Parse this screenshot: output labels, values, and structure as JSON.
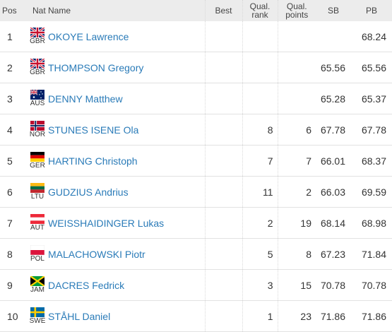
{
  "headers": {
    "pos": "Pos",
    "nat": "Nat",
    "name": "Name",
    "best": "Best",
    "qual_rank_1": "Qual.",
    "qual_rank_2": "rank",
    "qual_points_1": "Qual.",
    "qual_points_2": "points",
    "sb": "SB",
    "pb": "PB"
  },
  "rows": [
    {
      "pos": "1",
      "nat": "GBR",
      "flag": "gbr",
      "name": "OKOYE Lawrence",
      "best": "",
      "qual_rank": "",
      "qual_points": "",
      "sb": "",
      "pb": "68.24"
    },
    {
      "pos": "2",
      "nat": "GBR",
      "flag": "gbr",
      "name": "THOMPSON Gregory",
      "best": "",
      "qual_rank": "",
      "qual_points": "",
      "sb": "65.56",
      "pb": "65.56"
    },
    {
      "pos": "3",
      "nat": "AUS",
      "flag": "aus",
      "name": "DENNY Matthew",
      "best": "",
      "qual_rank": "",
      "qual_points": "",
      "sb": "65.28",
      "pb": "65.37"
    },
    {
      "pos": "4",
      "nat": "NOR",
      "flag": "nor",
      "name": "STUNES ISENE Ola",
      "best": "",
      "qual_rank": "8",
      "qual_points": "6",
      "sb": "67.78",
      "pb": "67.78"
    },
    {
      "pos": "5",
      "nat": "GER",
      "flag": "ger",
      "name": "HARTING Christoph",
      "best": "",
      "qual_rank": "7",
      "qual_points": "7",
      "sb": "66.01",
      "pb": "68.37"
    },
    {
      "pos": "6",
      "nat": "LTU",
      "flag": "ltu",
      "name": "GUDZIUS Andrius",
      "best": "",
      "qual_rank": "11",
      "qual_points": "2",
      "sb": "66.03",
      "pb": "69.59"
    },
    {
      "pos": "7",
      "nat": "AUT",
      "flag": "aut",
      "name": "WEISSHAIDINGER Lukas",
      "best": "",
      "qual_rank": "2",
      "qual_points": "19",
      "sb": "68.14",
      "pb": "68.98"
    },
    {
      "pos": "8",
      "nat": "POL",
      "flag": "pol",
      "name": "MALACHOWSKI Piotr",
      "best": "",
      "qual_rank": "5",
      "qual_points": "8",
      "sb": "67.23",
      "pb": "71.84"
    },
    {
      "pos": "9",
      "nat": "JAM",
      "flag": "jam",
      "name": "DACRES Fedrick",
      "best": "",
      "qual_rank": "3",
      "qual_points": "15",
      "sb": "70.78",
      "pb": "70.78"
    },
    {
      "pos": "10",
      "nat": "SWE",
      "flag": "swe",
      "name": "STÅHL Daniel",
      "best": "",
      "qual_rank": "1",
      "qual_points": "23",
      "sb": "71.86",
      "pb": "71.86"
    }
  ],
  "colors": {
    "header_bg": "#ececec",
    "name_link": "#2a7bb8",
    "row_border": "#e2e2e2"
  }
}
